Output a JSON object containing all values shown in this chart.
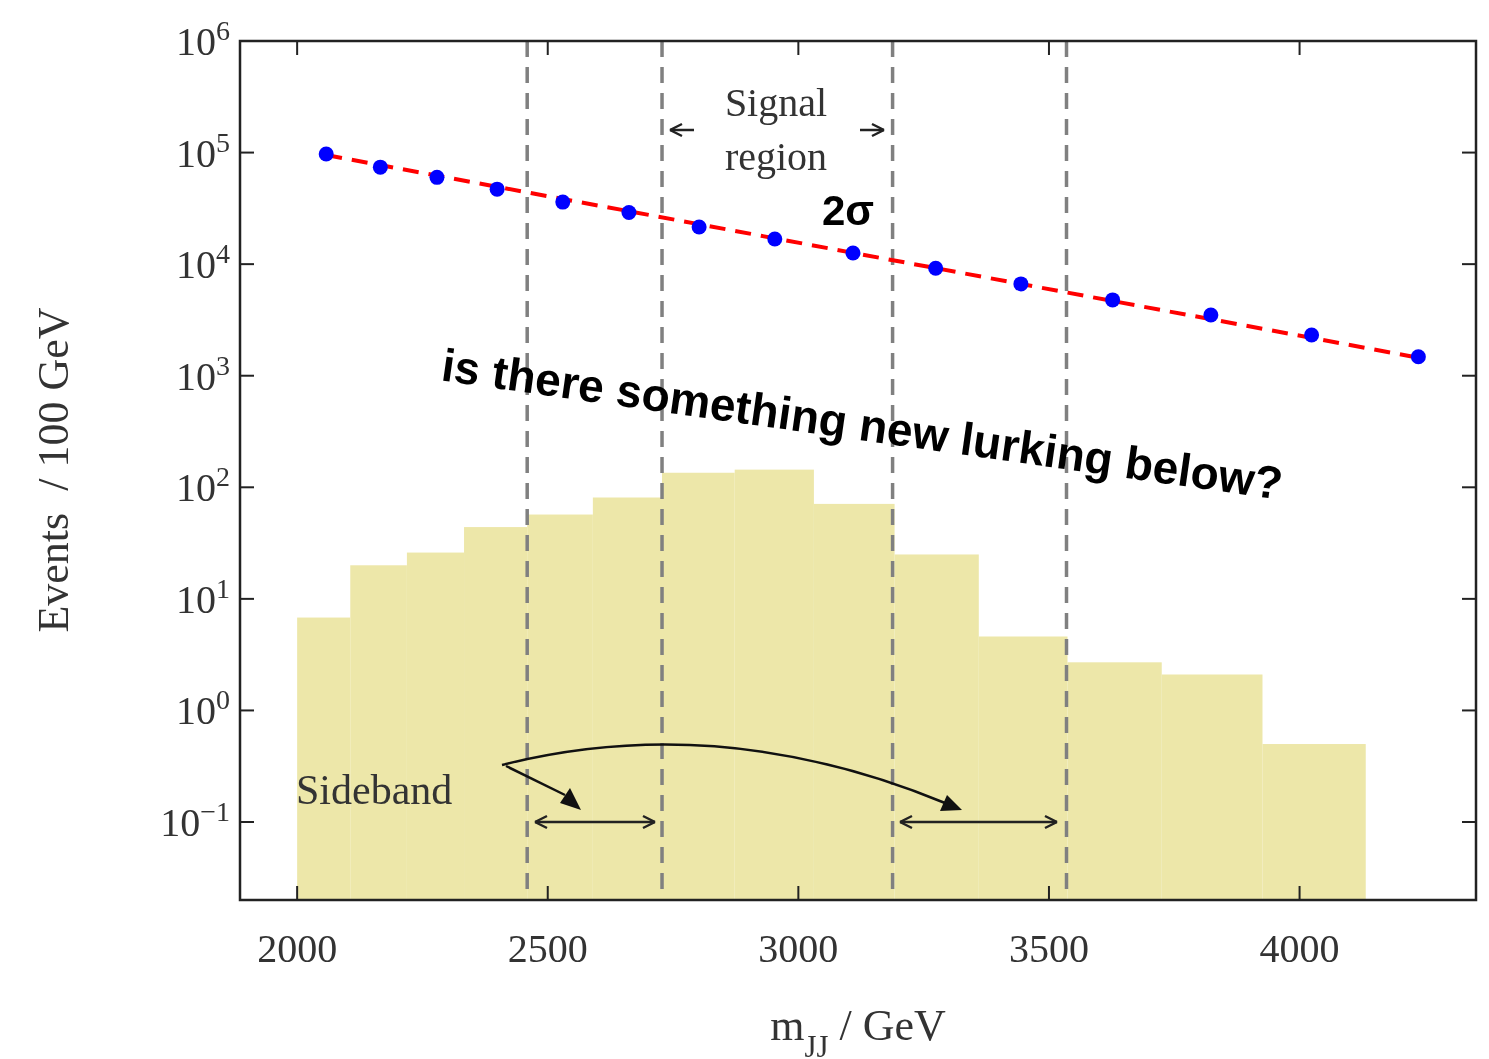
{
  "chart_data": {
    "type": "histogram",
    "xlabel": "m$_{JJ}$ / GeV",
    "ylabel": "Events  / 100 GeV",
    "bins": [
      2000,
      2106,
      2219,
      2333,
      2459,
      2590,
      2728,
      2873,
      3031,
      3192,
      3360,
      3537,
      3725,
      3926,
      4132
    ],
    "values": [
      6.8,
      20,
      26,
      44,
      57,
      81,
      135,
      144,
      71,
      25,
      4.6,
      2.7,
      2.1,
      0.5
    ],
    "color": "#ede7a9",
    "series": [
      {
        "type": "line",
        "x": [
          2058,
          4237
        ],
        "values": [
          95000,
          1450
        ],
        "color": "#ff0000",
        "line_style": "dashed"
      },
      {
        "type": "scatter",
        "x": [
          2058,
          2166,
          2279,
          2399,
          2530,
          2662,
          2802,
          2953,
          3109,
          3274,
          3444,
          3627,
          3823,
          4024,
          4237
        ],
        "values": [
          97000,
          74000,
          60000,
          47000,
          36000,
          29000,
          21500,
          16800,
          12600,
          9200,
          6650,
          4780,
          3500,
          2320,
          1480
        ],
        "color": "#0000ff",
        "marker": "circle"
      }
    ],
    "log": "y",
    "xlim": [
      1886,
      4352
    ],
    "ylim": [
      0.02,
      1000000
    ],
    "xticks": [
      2000,
      2500,
      3000,
      3500,
      4000
    ],
    "yticks": [
      {
        "value": 0.1,
        "label": "10$^{−1}$"
      },
      {
        "value": 1,
        "label": "10$^{0}$"
      },
      {
        "value": 10,
        "label": "10$^{1}$"
      },
      {
        "value": 100,
        "label": "10$^{2}$"
      },
      {
        "value": 1000,
        "label": "10$^{3}$"
      },
      {
        "value": 10000,
        "label": "10$^{4}$"
      },
      {
        "value": 100000,
        "label": "10$^{5}$"
      },
      {
        "value": 1000000,
        "label": "10$^{6}$"
      }
    ],
    "ref_lines": [
      {
        "axis": "x",
        "value": 2459,
        "color": "#808080",
        "line_style": "dashed"
      },
      {
        "axis": "x",
        "value": 2728,
        "color": "#808080",
        "line_style": "dashed"
      },
      {
        "axis": "x",
        "value": 3188,
        "color": "#808080",
        "line_style": "dashed"
      },
      {
        "axis": "x",
        "value": 3535,
        "color": "#808080",
        "line_style": "dashed"
      }
    ],
    "annotations": [
      "Signal region",
      "2σ",
      "is there something new lurking below?",
      "Sideband"
    ],
    "grid": false
  }
}
